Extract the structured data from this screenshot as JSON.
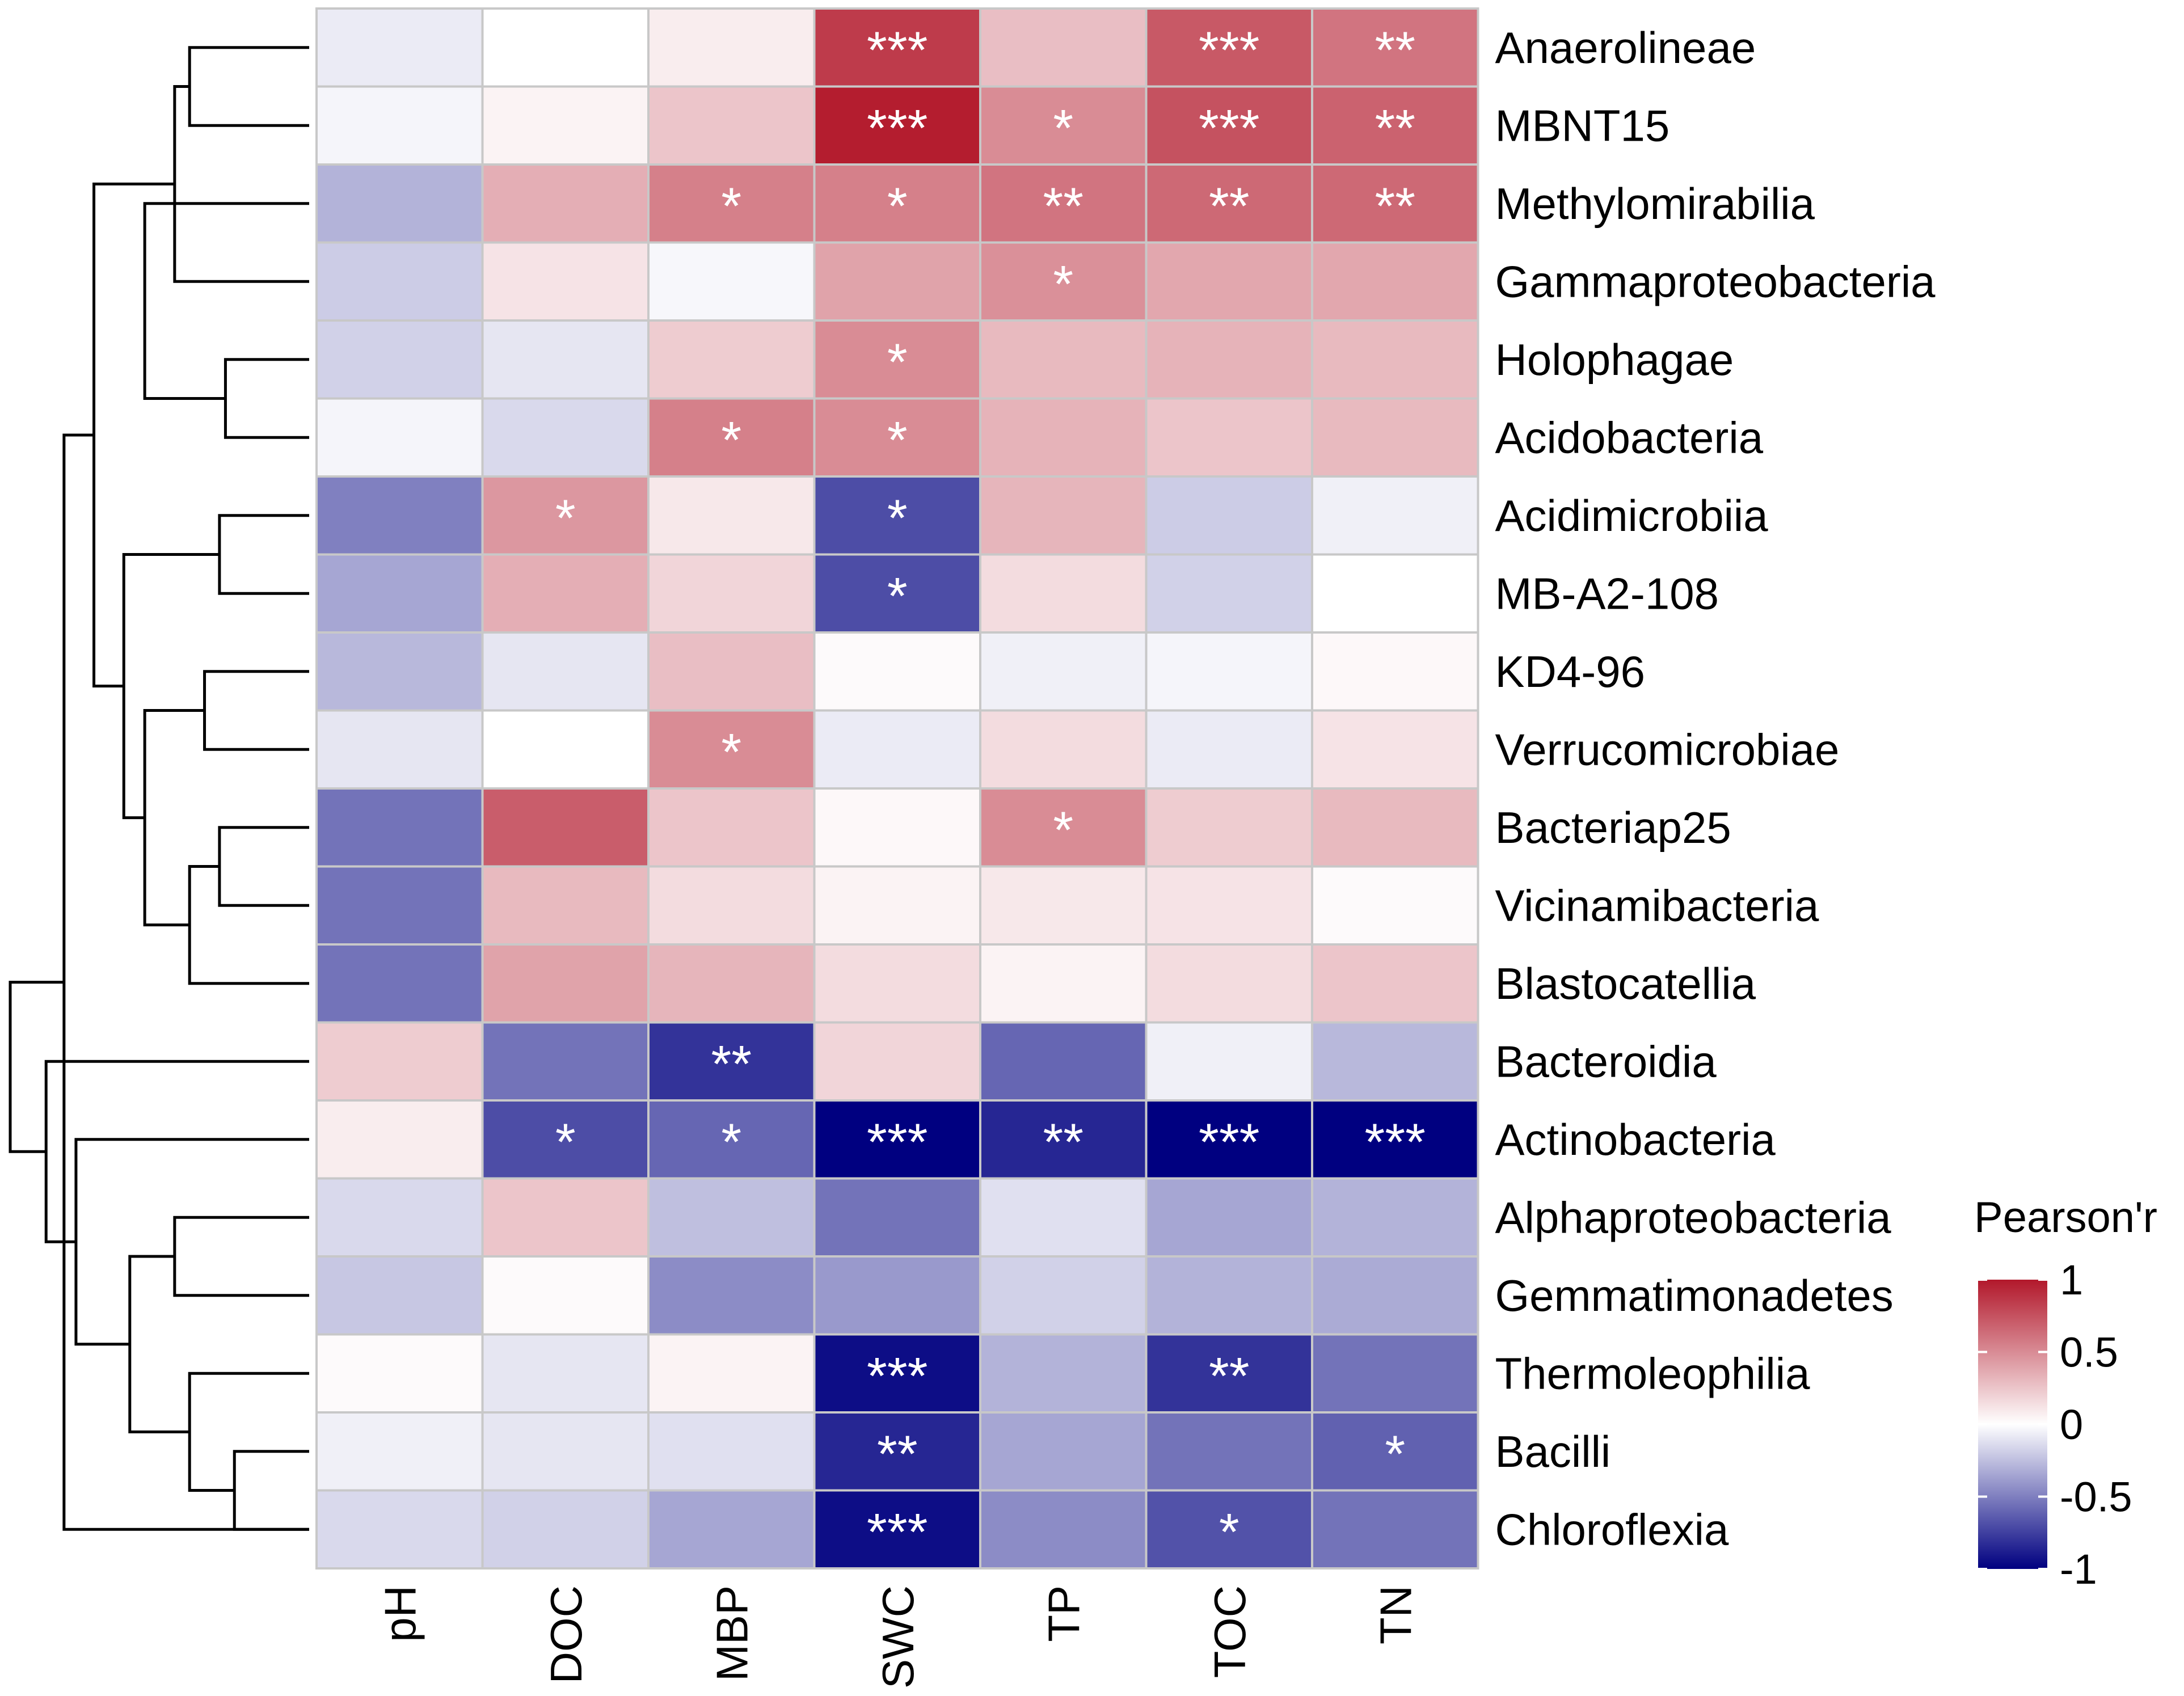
{
  "chart_data": {
    "type": "heatmap",
    "title": "",
    "legend_title": "Pearson'r",
    "legend_ticks": [
      {
        "value": 1,
        "label": "1"
      },
      {
        "value": 0.5,
        "label": "0.5"
      },
      {
        "value": 0,
        "label": "0"
      },
      {
        "value": -0.5,
        "label": "-0.5"
      },
      {
        "value": -1,
        "label": "-1"
      }
    ],
    "color_scale": {
      "low": "#000080",
      "mid": "#ffffff",
      "high": "#b2182b",
      "min": -1,
      "max": 1
    },
    "columns": [
      "pH",
      "DOC",
      "MBP",
      "SWC",
      "TP",
      "TOC",
      "TN"
    ],
    "rows": [
      "Anaerolineae",
      "MBNT15",
      "Methylomirabilia",
      "Gammaproteobacteria",
      "Holophagae",
      "Acidobacteria",
      "Acidimicrobiia",
      "MB-A2-108",
      "KD4-96",
      "Verrucomicrobiae",
      "Bacteriap25",
      "Vicinamibacteria",
      "Blastocatellia",
      "Bacteroidia",
      "Actinobacteria",
      "Alphaproteobacteria",
      "Gemmatimonadetes",
      "Thermoleophilia",
      "Bacilli",
      "Chloroflexia"
    ],
    "values": [
      [
        -0.08,
        0.0,
        0.08,
        0.85,
        0.28,
        0.72,
        0.6
      ],
      [
        -0.04,
        0.05,
        0.25,
        0.98,
        0.5,
        0.75,
        0.68
      ],
      [
        -0.3,
        0.35,
        0.55,
        0.55,
        0.6,
        0.65,
        0.65
      ],
      [
        -0.2,
        0.12,
        -0.03,
        0.4,
        0.48,
        0.38,
        0.38
      ],
      [
        -0.18,
        -0.1,
        0.22,
        0.5,
        0.3,
        0.33,
        0.3
      ],
      [
        -0.04,
        -0.15,
        0.55,
        0.5,
        0.33,
        0.25,
        0.3
      ],
      [
        -0.5,
        0.45,
        0.1,
        -0.7,
        0.32,
        -0.2,
        -0.06
      ],
      [
        -0.35,
        0.35,
        0.18,
        -0.7,
        0.15,
        -0.18,
        0.0
      ],
      [
        -0.28,
        -0.1,
        0.28,
        0.02,
        -0.06,
        -0.04,
        0.03
      ],
      [
        -0.1,
        0.0,
        0.5,
        -0.08,
        0.15,
        -0.08,
        0.12
      ],
      [
        -0.55,
        0.7,
        0.25,
        0.03,
        0.5,
        0.22,
        0.3
      ],
      [
        -0.55,
        0.3,
        0.15,
        0.05,
        0.1,
        0.12,
        0.02
      ],
      [
        -0.55,
        0.4,
        0.32,
        0.15,
        0.05,
        0.15,
        0.25
      ],
      [
        0.22,
        -0.55,
        -0.8,
        0.18,
        -0.6,
        -0.06,
        -0.28
      ],
      [
        0.08,
        -0.7,
        -0.6,
        -1.0,
        -0.85,
        -1.0,
        -1.0
      ],
      [
        -0.15,
        0.25,
        -0.25,
        -0.55,
        -0.12,
        -0.35,
        -0.3
      ],
      [
        -0.22,
        0.02,
        -0.45,
        -0.4,
        -0.18,
        -0.3,
        -0.33
      ],
      [
        0.02,
        -0.1,
        0.05,
        -0.95,
        -0.3,
        -0.8,
        -0.55
      ],
      [
        -0.06,
        -0.1,
        -0.12,
        -0.85,
        -0.35,
        -0.55,
        -0.62
      ],
      [
        -0.15,
        -0.18,
        -0.35,
        -0.95,
        -0.45,
        -0.68,
        -0.55
      ]
    ],
    "significance": [
      [
        "",
        "",
        "",
        "***",
        "",
        "***",
        "**"
      ],
      [
        "",
        "",
        "",
        "***",
        "*",
        "***",
        "**"
      ],
      [
        "",
        "",
        "*",
        "*",
        "**",
        "**",
        "**"
      ],
      [
        "",
        "",
        "",
        "",
        "*",
        "",
        ""
      ],
      [
        "",
        "",
        "",
        "*",
        "",
        "",
        ""
      ],
      [
        "",
        "",
        "*",
        "*",
        "",
        "",
        ""
      ],
      [
        "",
        "*",
        "",
        "*",
        "",
        "",
        ""
      ],
      [
        "",
        "",
        "",
        "*",
        "",
        "",
        ""
      ],
      [
        "",
        "",
        "",
        "",
        "",
        "",
        ""
      ],
      [
        "",
        "",
        "*",
        "",
        "",
        "",
        ""
      ],
      [
        "",
        "",
        "",
        "",
        "*",
        "",
        ""
      ],
      [
        "",
        "",
        "",
        "",
        "",
        "",
        ""
      ],
      [
        "",
        "",
        "",
        "",
        "",
        "",
        ""
      ],
      [
        "",
        "",
        "**",
        "",
        "",
        "",
        ""
      ],
      [
        "",
        "*",
        "*",
        "***",
        "**",
        "***",
        "***"
      ],
      [
        "",
        "",
        "",
        "",
        "",
        "",
        ""
      ],
      [
        "",
        "",
        "",
        "",
        "",
        "",
        ""
      ],
      [
        "",
        "",
        "",
        "***",
        "",
        "**",
        ""
      ],
      [
        "",
        "",
        "",
        "**",
        "",
        "",
        "*"
      ],
      [
        "",
        "",
        "",
        "***",
        "",
        "*",
        ""
      ]
    ],
    "row_dendrogram": [
      [
        0,
        1,
        0.4
      ],
      [
        4,
        5,
        0.28
      ],
      [
        3,
        20,
        0.45
      ],
      [
        2,
        21,
        0.55
      ],
      [
        6,
        7,
        0.3
      ],
      [
        8,
        9,
        0.35
      ],
      [
        10,
        11,
        0.3
      ],
      [
        12,
        26,
        0.4
      ],
      [
        25,
        27,
        0.55
      ],
      [
        24,
        28,
        0.62
      ],
      [
        22,
        29,
        0.72
      ],
      [
        19,
        30,
        0.82
      ],
      [
        15,
        16,
        0.45
      ],
      [
        18,
        19,
        0.25
      ],
      [
        17,
        33,
        0.4
      ],
      [
        32,
        34,
        0.6
      ],
      [
        14,
        35,
        0.78
      ],
      [
        13,
        36,
        0.88
      ],
      [
        31,
        37,
        1.0
      ]
    ]
  }
}
